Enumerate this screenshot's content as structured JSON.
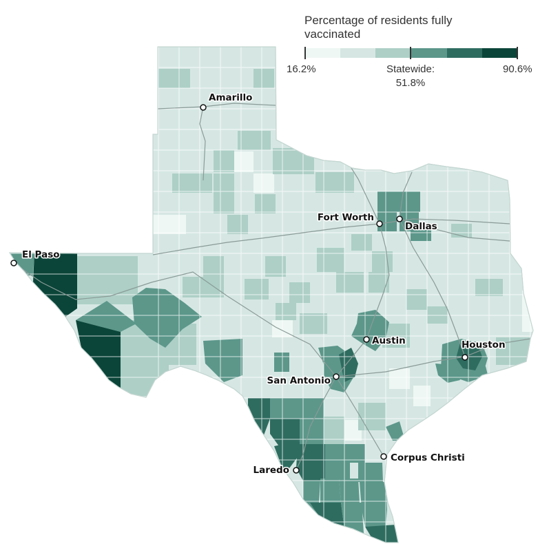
{
  "legend": {
    "title": "Percentage of residents fully vaccinated",
    "min_label": "16.2%",
    "statewide_label": "Statewide:",
    "statewide_value": "51.8%",
    "max_label": "90.6%",
    "colors": [
      "#eef7f4",
      "#d6e7e3",
      "#adcfc6",
      "#5c978a",
      "#2f6c60",
      "#0b4539"
    ]
  },
  "cities": [
    {
      "name": "Amarillo"
    },
    {
      "name": "Fort Worth"
    },
    {
      "name": "Dallas"
    },
    {
      "name": "El Paso"
    },
    {
      "name": "Austin"
    },
    {
      "name": "Houston"
    },
    {
      "name": "San Antonio"
    },
    {
      "name": "Corpus Christi"
    },
    {
      "name": "Laredo"
    }
  ]
}
